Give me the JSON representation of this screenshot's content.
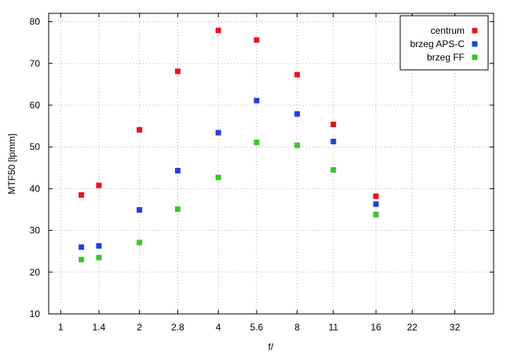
{
  "chart_data": {
    "type": "scatter",
    "x_scale": "log2",
    "xlabel": "f/",
    "ylabel": "MTF50 [lpmm]",
    "xlim": [
      0.9,
      45
    ],
    "ylim": [
      10,
      82
    ],
    "x_ticks": [
      {
        "value": 1,
        "label": "1"
      },
      {
        "value": 1.4,
        "label": "1.4"
      },
      {
        "value": 2,
        "label": "2"
      },
      {
        "value": 2.8,
        "label": "2.8"
      },
      {
        "value": 4,
        "label": "4"
      },
      {
        "value": 5.6,
        "label": "5.6"
      },
      {
        "value": 8,
        "label": "8"
      },
      {
        "value": 11,
        "label": "11"
      },
      {
        "value": 16,
        "label": "16"
      },
      {
        "value": 22,
        "label": "22"
      },
      {
        "value": 32,
        "label": "32"
      }
    ],
    "y_ticks": [
      10,
      20,
      30,
      40,
      50,
      60,
      70,
      80
    ],
    "grid": true,
    "legend_position": "top-right",
    "series": [
      {
        "name": "centrum",
        "color": "#e8141c",
        "points": [
          [
            1.2,
            38.5
          ],
          [
            1.4,
            40.8
          ],
          [
            2,
            54.1
          ],
          [
            2.8,
            68.1
          ],
          [
            4,
            77.9
          ],
          [
            5.6,
            75.6
          ],
          [
            8,
            67.3
          ],
          [
            11,
            55.4
          ],
          [
            16,
            38.2
          ]
        ]
      },
      {
        "name": "brzeg APS-C",
        "color": "#2040d8",
        "points": [
          [
            1.2,
            26.0
          ],
          [
            1.4,
            26.3
          ],
          [
            2,
            34.9
          ],
          [
            2.8,
            44.3
          ],
          [
            4,
            53.4
          ],
          [
            5.6,
            61.1
          ],
          [
            8,
            57.9
          ],
          [
            11,
            51.3
          ],
          [
            16,
            36.3
          ]
        ]
      },
      {
        "name": "brzeg FF",
        "color": "#3cc42a",
        "points": [
          [
            1.2,
            23.0
          ],
          [
            1.4,
            23.5
          ],
          [
            2,
            27.1
          ],
          [
            2.8,
            35.1
          ],
          [
            4,
            42.7
          ],
          [
            5.6,
            51.1
          ],
          [
            8,
            50.4
          ],
          [
            11,
            44.5
          ],
          [
            16,
            33.8
          ]
        ]
      }
    ]
  }
}
